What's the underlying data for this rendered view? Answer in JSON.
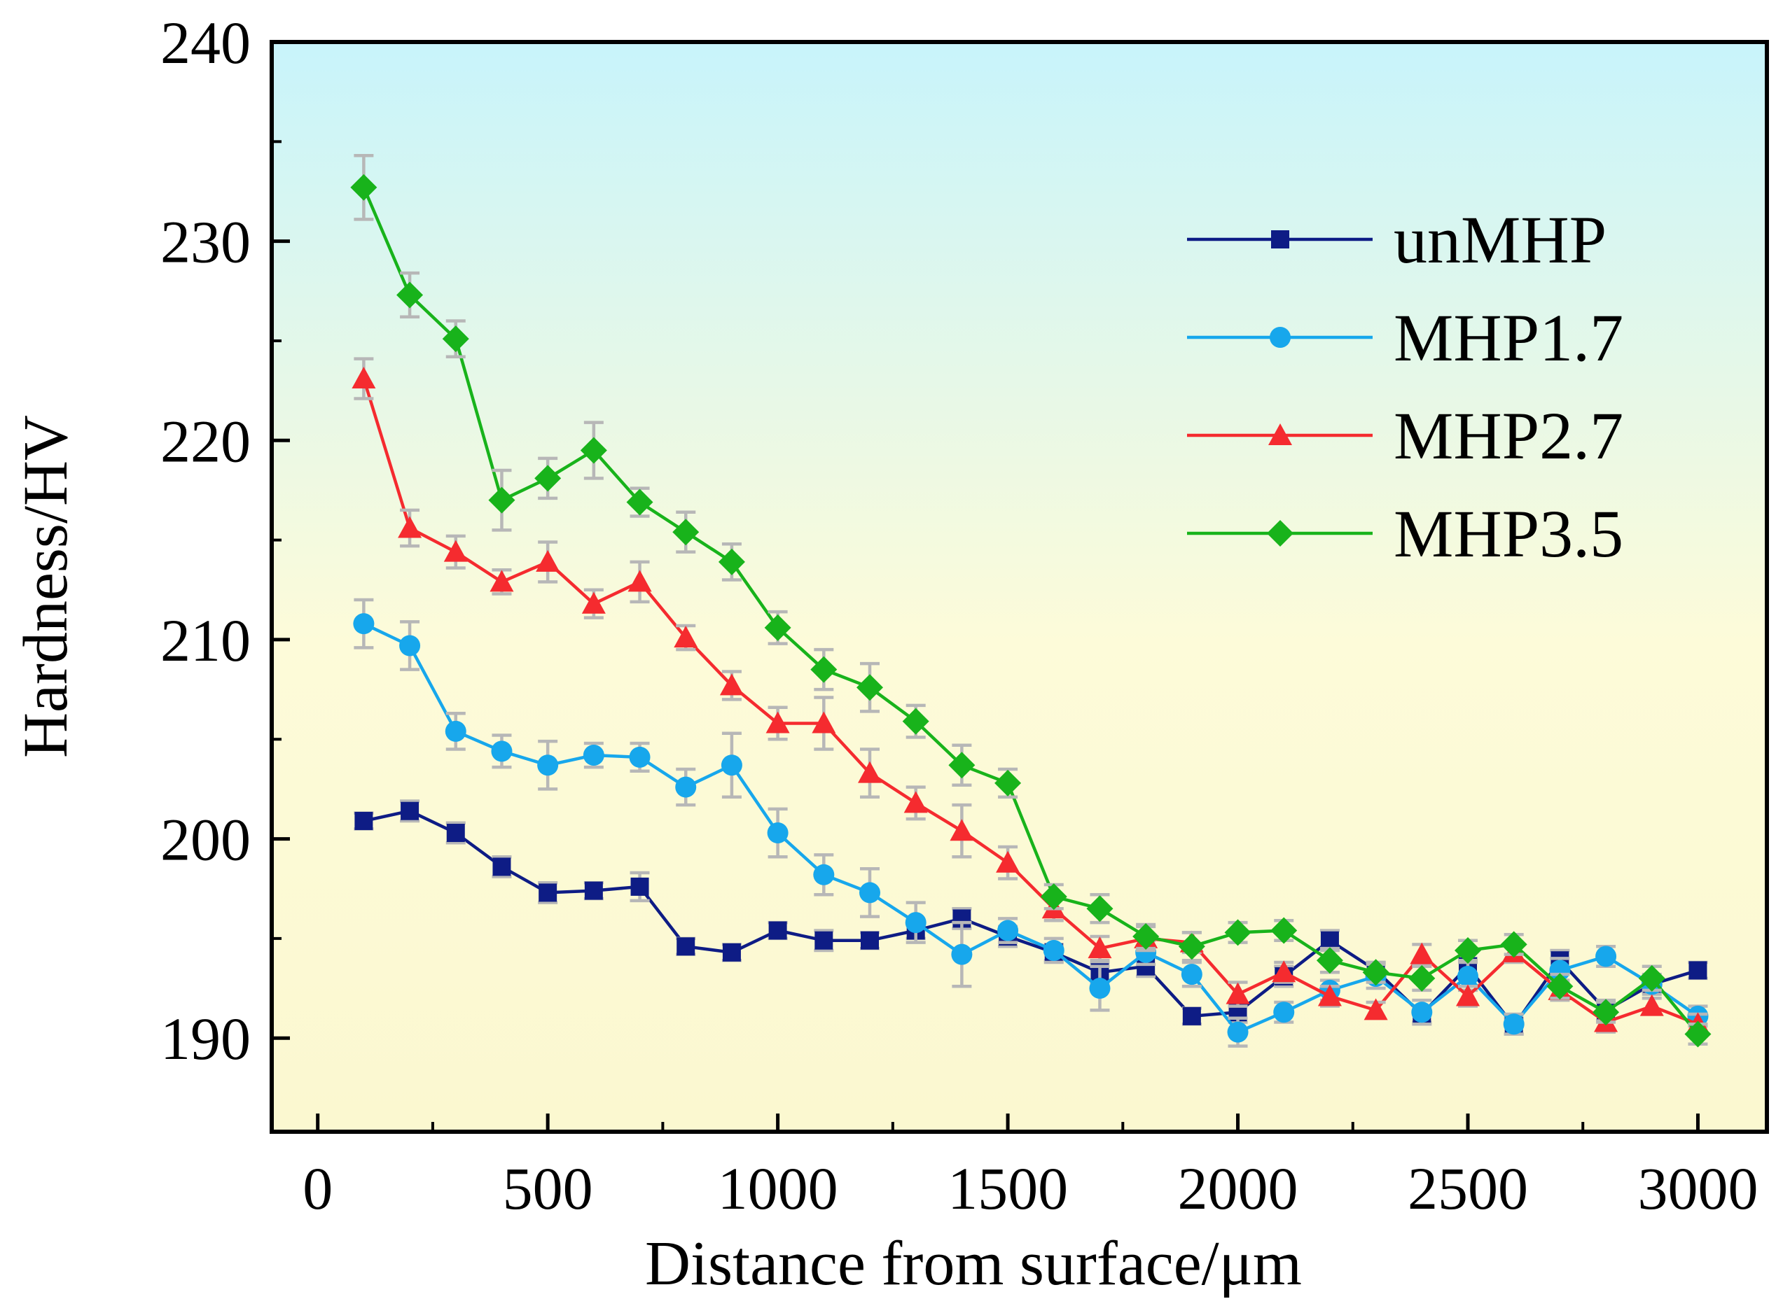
{
  "chart_data": {
    "type": "line",
    "title": "",
    "xlabel": "Distance from surface/μm",
    "ylabel": "Hardness/HV",
    "xlim": [
      -100,
      3150
    ],
    "ylim": [
      185.3,
      240
    ],
    "xticks": [
      0,
      500,
      1000,
      1500,
      2000,
      2500,
      3000
    ],
    "yticks": [
      190,
      200,
      210,
      220,
      230,
      240
    ],
    "x": [
      100,
      200,
      300,
      400,
      500,
      600,
      700,
      800,
      900,
      1000,
      1100,
      1200,
      1300,
      1400,
      1500,
      1600,
      1700,
      1800,
      1900,
      2000,
      2100,
      2200,
      2300,
      2400,
      2500,
      2600,
      2700,
      2800,
      2900,
      3000
    ],
    "legend_position": "top-right",
    "grid": false,
    "background_gradient": [
      "#c8f4fb",
      "#fdfbd9",
      "#fbf8d0"
    ],
    "series": [
      {
        "name": "unMHP",
        "color": "#0e1c85",
        "marker": "square",
        "values": [
          200.9,
          201.4,
          200.3,
          198.6,
          197.3,
          197.4,
          197.6,
          194.6,
          194.3,
          195.4,
          194.9,
          194.9,
          195.4,
          196.0,
          195.1,
          194.3,
          193.3,
          193.6,
          191.1,
          191.3,
          193.1,
          194.9,
          193.4,
          191.2,
          193.6,
          190.6,
          193.9,
          191.4,
          192.7,
          193.4
        ],
        "errors": [
          0.4,
          0.5,
          0.5,
          0.5,
          0.5,
          0.4,
          0.7,
          0.4,
          0.4,
          0.4,
          0.5,
          0.4,
          0.4,
          0.5,
          0.5,
          0.4,
          0.5,
          0.5,
          0.4,
          0.5,
          0.5,
          0.5,
          0.4,
          0.4,
          0.4,
          0.4,
          0.5,
          0.5,
          0.4,
          0.4
        ]
      },
      {
        "name": "MHP1.7",
        "color": "#17a7ec",
        "marker": "circle",
        "values": [
          210.8,
          209.7,
          205.4,
          204.4,
          203.7,
          204.2,
          204.1,
          202.6,
          203.7,
          200.3,
          198.2,
          197.3,
          195.8,
          194.2,
          195.4,
          194.4,
          192.5,
          194.3,
          193.2,
          190.3,
          191.3,
          192.4,
          193.1,
          191.3,
          193.1,
          190.7,
          193.4,
          194.1,
          192.7,
          191.1
        ],
        "errors": [
          1.2,
          1.2,
          0.9,
          0.8,
          1.2,
          0.6,
          0.7,
          0.9,
          1.6,
          1.2,
          1.0,
          1.2,
          1.0,
          1.6,
          0.6,
          0.6,
          1.1,
          0.6,
          0.6,
          0.7,
          0.5,
          0.5,
          0.6,
          0.6,
          0.7,
          0.5,
          0.6,
          0.5,
          0.5,
          0.5
        ]
      },
      {
        "name": "MHP2.7",
        "color": "#f52b2f",
        "marker": "triangle",
        "values": [
          223.1,
          215.6,
          214.4,
          212.9,
          213.9,
          211.8,
          212.9,
          210.1,
          207.7,
          205.8,
          205.8,
          203.3,
          201.8,
          200.4,
          198.8,
          196.5,
          194.5,
          195.0,
          194.8,
          192.2,
          193.3,
          192.1,
          191.4,
          194.2,
          192.1,
          194.3,
          192.4,
          190.8,
          191.6,
          190.7
        ],
        "errors": [
          1.0,
          0.9,
          0.8,
          0.6,
          1.0,
          0.7,
          1.0,
          0.6,
          0.7,
          0.8,
          1.3,
          1.2,
          0.8,
          1.3,
          0.8,
          0.6,
          0.6,
          0.6,
          0.5,
          0.6,
          0.5,
          0.5,
          0.4,
          0.5,
          0.5,
          0.5,
          0.5,
          0.5,
          0.4,
          0.5
        ]
      },
      {
        "name": "MHP3.5",
        "color": "#18b31b",
        "marker": "diamond",
        "values": [
          232.7,
          227.3,
          225.1,
          217.0,
          218.1,
          219.5,
          216.9,
          215.4,
          213.9,
          210.6,
          208.5,
          207.6,
          205.9,
          203.7,
          202.8,
          197.1,
          196.5,
          195.1,
          194.6,
          195.3,
          195.4,
          193.9,
          193.3,
          193.0,
          194.4,
          194.7,
          192.6,
          191.3,
          193.0,
          190.2
        ],
        "errors": [
          1.6,
          1.1,
          0.9,
          1.5,
          1.0,
          1.4,
          0.7,
          1.0,
          0.9,
          0.8,
          1.0,
          1.2,
          0.8,
          1.0,
          0.7,
          0.6,
          0.7,
          0.6,
          0.7,
          0.5,
          0.5,
          0.6,
          0.5,
          0.6,
          0.5,
          0.5,
          0.6,
          0.5,
          0.6,
          0.5
        ]
      }
    ]
  }
}
